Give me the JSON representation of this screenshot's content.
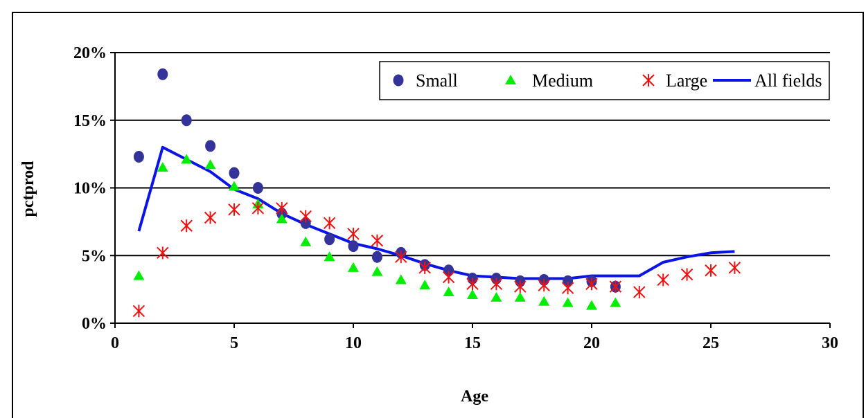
{
  "chart_data": {
    "type": "scatter",
    "title": "",
    "xlabel": "Age",
    "ylabel": "pctprod",
    "xlim": [
      0,
      30
    ],
    "ylim": [
      0,
      0.2
    ],
    "xticks": [
      0,
      5,
      10,
      15,
      20,
      25,
      30
    ],
    "yticks": [
      0,
      0.05,
      0.1,
      0.15,
      0.2
    ],
    "xtick_labels": [
      "0",
      "5",
      "10",
      "15",
      "20",
      "25",
      "30"
    ],
    "ytick_labels": [
      "0%",
      "5%",
      "10%",
      "15%",
      "20%"
    ],
    "grid": "horizontal",
    "legend_position": "top-right",
    "series": [
      {
        "name": "Small",
        "kind": "scatter",
        "marker": "circle",
        "color": "#333399",
        "x": [
          1,
          2,
          3,
          4,
          5,
          6,
          7,
          8,
          9,
          10,
          11,
          12,
          13,
          14,
          15,
          16,
          17,
          18,
          19,
          20,
          21
        ],
        "y": [
          0.123,
          0.184,
          0.15,
          0.131,
          0.111,
          0.1,
          0.081,
          0.074,
          0.062,
          0.057,
          0.049,
          0.052,
          0.043,
          0.039,
          0.033,
          0.033,
          0.031,
          0.032,
          0.031,
          0.031,
          0.027
        ]
      },
      {
        "name": "Medium",
        "kind": "scatter",
        "marker": "triangle",
        "color": "#00ee00",
        "x": [
          1,
          2,
          3,
          4,
          5,
          6,
          7,
          8,
          9,
          10,
          11,
          12,
          13,
          14,
          15,
          16,
          17,
          18,
          19,
          20,
          21
        ],
        "y": [
          0.035,
          0.115,
          0.121,
          0.117,
          0.101,
          0.088,
          0.077,
          0.06,
          0.049,
          0.041,
          0.038,
          0.032,
          0.028,
          0.023,
          0.021,
          0.019,
          0.019,
          0.016,
          0.015,
          0.013,
          0.015
        ]
      },
      {
        "name": "Large",
        "kind": "scatter",
        "marker": "asterisk",
        "color": "#ee1111",
        "x": [
          1,
          2,
          3,
          4,
          5,
          6,
          7,
          8,
          9,
          10,
          11,
          12,
          13,
          14,
          15,
          16,
          17,
          18,
          19,
          20,
          21,
          22,
          23,
          24,
          25,
          26
        ],
        "y": [
          0.009,
          0.052,
          0.072,
          0.078,
          0.084,
          0.085,
          0.085,
          0.079,
          0.074,
          0.066,
          0.061,
          0.049,
          0.041,
          0.034,
          0.029,
          0.029,
          0.027,
          0.028,
          0.026,
          0.029,
          0.027,
          0.023,
          0.032,
          0.036,
          0.039,
          0.041
        ]
      },
      {
        "name": "All fields",
        "kind": "line",
        "color": "#0a14e6",
        "x": [
          1,
          2,
          3,
          4,
          5,
          6,
          7,
          8,
          9,
          10,
          11,
          12,
          13,
          14,
          15,
          16,
          17,
          18,
          19,
          20,
          21,
          22,
          23,
          24,
          25,
          26
        ],
        "y": [
          0.068,
          0.13,
          0.121,
          0.112,
          0.099,
          0.092,
          0.081,
          0.073,
          0.066,
          0.059,
          0.055,
          0.05,
          0.044,
          0.039,
          0.035,
          0.034,
          0.033,
          0.033,
          0.033,
          0.035,
          0.035,
          0.035,
          0.045,
          0.049,
          0.052,
          0.053
        ]
      }
    ]
  }
}
